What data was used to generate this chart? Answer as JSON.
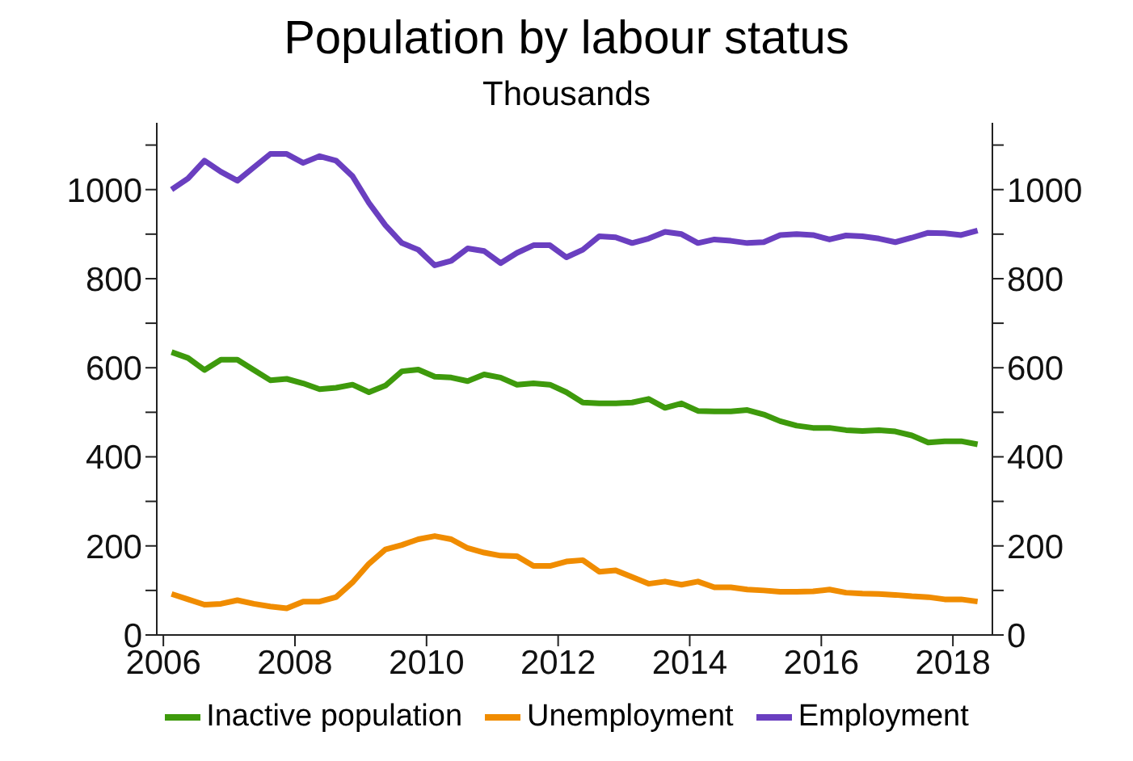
{
  "chart_data": {
    "type": "line",
    "title": "Population by labour status",
    "subtitle": "Thousands",
    "x": [
      2006.125,
      2006.375,
      2006.625,
      2006.875,
      2007.125,
      2007.375,
      2007.625,
      2007.875,
      2008.125,
      2008.375,
      2008.625,
      2008.875,
      2009.125,
      2009.375,
      2009.625,
      2009.875,
      2010.125,
      2010.375,
      2010.625,
      2010.875,
      2011.125,
      2011.375,
      2011.625,
      2011.875,
      2012.125,
      2012.375,
      2012.625,
      2012.875,
      2013.125,
      2013.375,
      2013.625,
      2013.875,
      2014.125,
      2014.375,
      2014.625,
      2014.875,
      2015.125,
      2015.375,
      2015.625,
      2015.875,
      2016.125,
      2016.375,
      2016.625,
      2016.875,
      2017.125,
      2017.375,
      2017.625,
      2017.875,
      2018.125,
      2018.375
    ],
    "series": [
      {
        "name": "Inactive population",
        "color": "#3e9a0c",
        "values": [
          635,
          622,
          595,
          618,
          618,
          595,
          572,
          575,
          565,
          552,
          555,
          562,
          545,
          560,
          592,
          596,
          580,
          578,
          570,
          585,
          578,
          562,
          565,
          562,
          545,
          522,
          520,
          520,
          522,
          530,
          510,
          520,
          503,
          502,
          502,
          505,
          495,
          480,
          470,
          465,
          465,
          460,
          458,
          460,
          457,
          448,
          432,
          435,
          435,
          428
        ]
      },
      {
        "name": "Unemployment",
        "color": "#f08c00",
        "values": [
          92,
          80,
          68,
          70,
          78,
          70,
          64,
          60,
          75,
          75,
          85,
          118,
          160,
          192,
          202,
          215,
          222,
          215,
          195,
          185,
          178,
          177,
          155,
          155,
          165,
          168,
          142,
          145,
          130,
          115,
          120,
          113,
          120,
          107,
          107,
          102,
          100,
          97,
          97,
          98,
          102,
          95,
          93,
          92,
          90,
          87,
          85,
          80,
          80,
          75
        ]
      },
      {
        "name": "Employment",
        "color": "#6a3fc0",
        "values": [
          1000,
          1025,
          1065,
          1040,
          1020,
          1050,
          1080,
          1080,
          1060,
          1075,
          1065,
          1030,
          970,
          920,
          880,
          865,
          830,
          840,
          868,
          862,
          835,
          858,
          875,
          875,
          848,
          865,
          895,
          893,
          880,
          890,
          905,
          900,
          880,
          888,
          885,
          880,
          882,
          898,
          900,
          898,
          888,
          897,
          895,
          890,
          882,
          892,
          903,
          902,
          898,
          908
        ]
      }
    ],
    "xlim": [
      2005.9,
      2018.6
    ],
    "xticks": [
      2006,
      2008,
      2010,
      2012,
      2014,
      2016,
      2018
    ],
    "ylim": [
      0,
      1150
    ],
    "yticks": [
      0,
      {
        "value": 100,
        "label": null
      },
      200,
      {
        "value": 300,
        "label": null
      },
      400,
      {
        "value": 500,
        "label": null
      },
      600,
      {
        "value": 700,
        "label": null
      },
      800,
      {
        "value": 900,
        "label": null
      },
      1000,
      {
        "value": 1100,
        "label": null
      }
    ],
    "y2lim": [
      0,
      1150
    ],
    "y2ticks": [
      0,
      {
        "value": 100,
        "label": null
      },
      200,
      {
        "value": 300,
        "label": null
      },
      400,
      {
        "value": 500,
        "label": null
      },
      600,
      {
        "value": 700,
        "label": null
      },
      800,
      {
        "value": 900,
        "label": null
      },
      1000,
      {
        "value": 1100,
        "label": null
      }
    ],
    "grid": false,
    "legend": "bottom",
    "marker": "none",
    "line_style": "solid"
  }
}
